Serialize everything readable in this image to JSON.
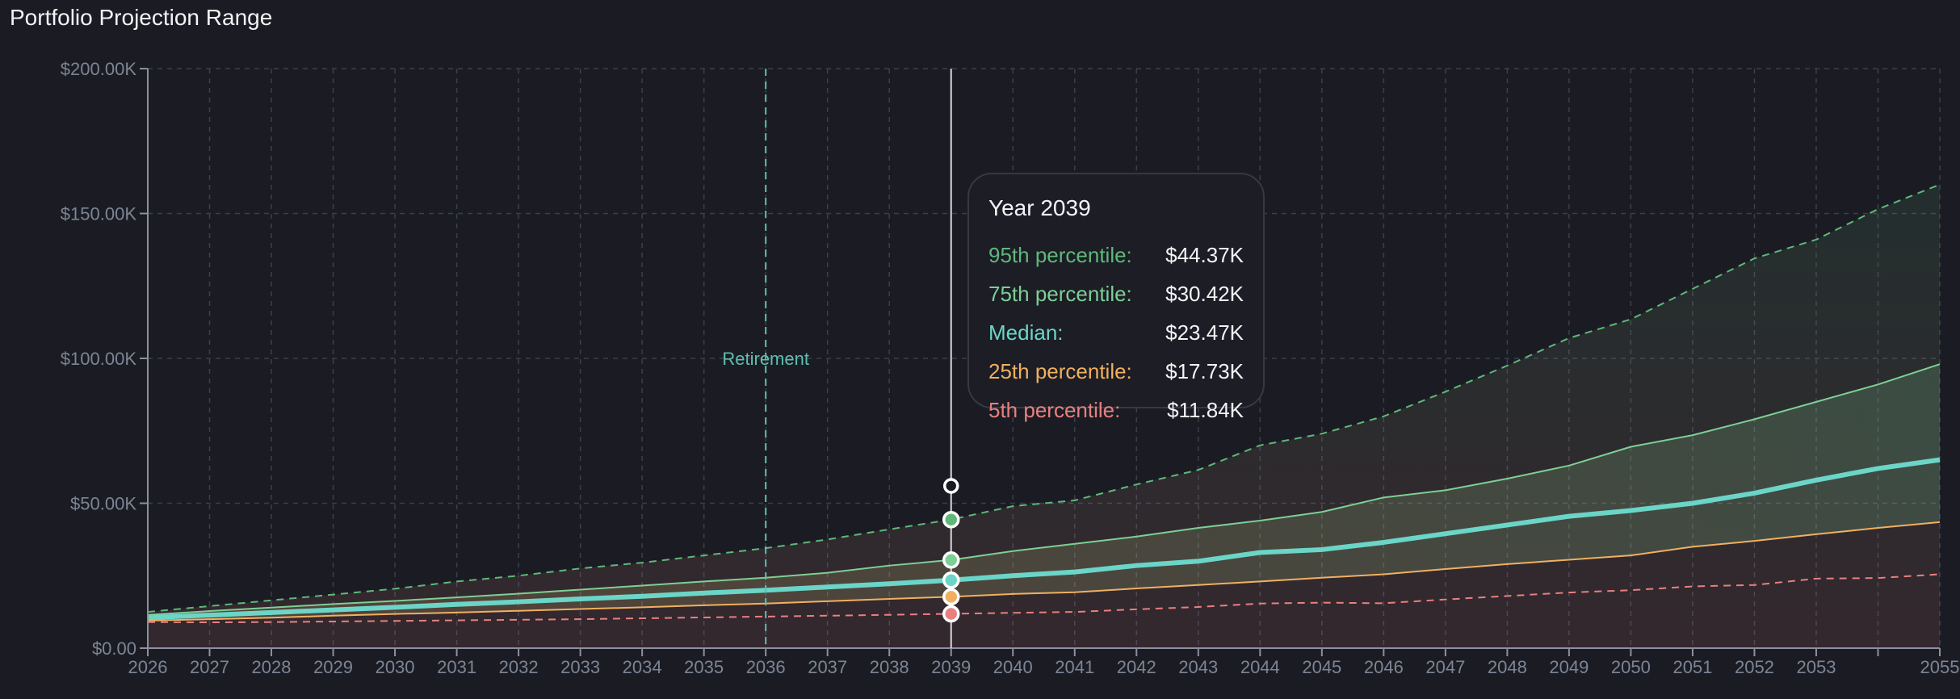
{
  "title": "Portfolio Projection Range",
  "colors": {
    "background": "#1b1c23",
    "p95": "#5fb87a",
    "p75": "#7dcf96",
    "median": "#6bd5c8",
    "p25": "#f0b060",
    "p5": "#e88080",
    "retirement": "#5fbfb0",
    "grid": "#3a3f4c",
    "axis_text": "#7c8595"
  },
  "chart_data": {
    "type": "line",
    "title": "Portfolio Projection Range",
    "xlabel": "",
    "ylabel": "",
    "x": [
      2026,
      2027,
      2028,
      2029,
      2030,
      2031,
      2032,
      2033,
      2034,
      2035,
      2036,
      2037,
      2038,
      2039,
      2040,
      2041,
      2042,
      2043,
      2044,
      2045,
      2046,
      2047,
      2048,
      2049,
      2050,
      2051,
      2052,
      2053,
      2054,
      2055
    ],
    "x_tick_labels": [
      "2026",
      "2027",
      "2028",
      "2029",
      "2030",
      "2031",
      "2032",
      "2033",
      "2034",
      "2035",
      "2036",
      "2037",
      "2038",
      "2039",
      "2040",
      "2041",
      "2042",
      "2043",
      "2044",
      "2045",
      "2046",
      "2047",
      "2048",
      "2049",
      "2050",
      "2051",
      "2052",
      "2053",
      "",
      "2055"
    ],
    "y_ticks": [
      0,
      50000,
      100000,
      150000,
      200000
    ],
    "y_tick_labels": [
      "$0.00",
      "$50.00K",
      "$100.00K",
      "$150.00K",
      "$200.00K"
    ],
    "xlim": [
      2026,
      2055
    ],
    "ylim": [
      0,
      200000
    ],
    "grid": true,
    "series": [
      {
        "key": "p95",
        "name": "95th percentile",
        "style": "dashed",
        "values": [
          12500,
          14500,
          16500,
          18500,
          20500,
          23000,
          25000,
          27500,
          29500,
          32000,
          34500,
          37500,
          41000,
          44370,
          49000,
          51000,
          56500,
          61500,
          70000,
          74000,
          80000,
          88500,
          97500,
          107000,
          113500,
          124000,
          134500,
          141000,
          151500,
          160000
        ]
      },
      {
        "key": "p75",
        "name": "75th percentile",
        "style": "solid",
        "values": [
          11500,
          12800,
          14000,
          15200,
          16300,
          17500,
          18800,
          20200,
          21600,
          23000,
          24300,
          26000,
          28500,
          30420,
          33500,
          36000,
          38500,
          41500,
          44000,
          47000,
          52000,
          54500,
          58500,
          63000,
          69500,
          73500,
          79000,
          85000,
          91000,
          98000
        ]
      },
      {
        "key": "median",
        "name": "Median",
        "style": "thick",
        "values": [
          10500,
          11400,
          12300,
          13200,
          14100,
          15100,
          16000,
          17000,
          17900,
          19000,
          20000,
          21100,
          22200,
          23470,
          25000,
          26300,
          28500,
          30000,
          33000,
          34000,
          36500,
          39500,
          42500,
          45500,
          47500,
          50000,
          53500,
          58000,
          62000,
          65000
        ]
      },
      {
        "key": "p25",
        "name": "25th percentile",
        "style": "solid",
        "values": [
          9500,
          10000,
          10500,
          11200,
          11800,
          12300,
          12900,
          13500,
          14100,
          14800,
          15400,
          16200,
          17000,
          17730,
          18700,
          19300,
          20600,
          21800,
          23000,
          24300,
          25500,
          27300,
          29000,
          30500,
          32000,
          35000,
          37000,
          39300,
          41500,
          43500
        ]
      },
      {
        "key": "p5",
        "name": "5th percentile",
        "style": "dashed",
        "values": [
          9000,
          8900,
          9000,
          9200,
          9400,
          9600,
          9800,
          10000,
          10300,
          10600,
          10900,
          11200,
          11500,
          11840,
          12200,
          12500,
          13400,
          14200,
          15400,
          15700,
          15500,
          16800,
          18000,
          19200,
          20000,
          21300,
          21800,
          24000,
          24200,
          25500
        ]
      }
    ],
    "annotations": [
      {
        "type": "vline",
        "x": 2036,
        "label": "Retirement"
      }
    ],
    "hover": {
      "x": 2039,
      "extra_marker_value": 56000
    }
  },
  "tooltip": {
    "header": "Year 2039",
    "rows": [
      {
        "label": "95th percentile:",
        "value": "$44.37K",
        "color": "#5fb87a"
      },
      {
        "label": "75th percentile:",
        "value": "$30.42K",
        "color": "#7dcf96"
      },
      {
        "label": "Median:",
        "value": "$23.47K",
        "color": "#6bd5c8"
      },
      {
        "label": "25th percentile:",
        "value": "$17.73K",
        "color": "#f0b060"
      },
      {
        "label": "5th percentile:",
        "value": "$11.84K",
        "color": "#e88080"
      }
    ]
  }
}
